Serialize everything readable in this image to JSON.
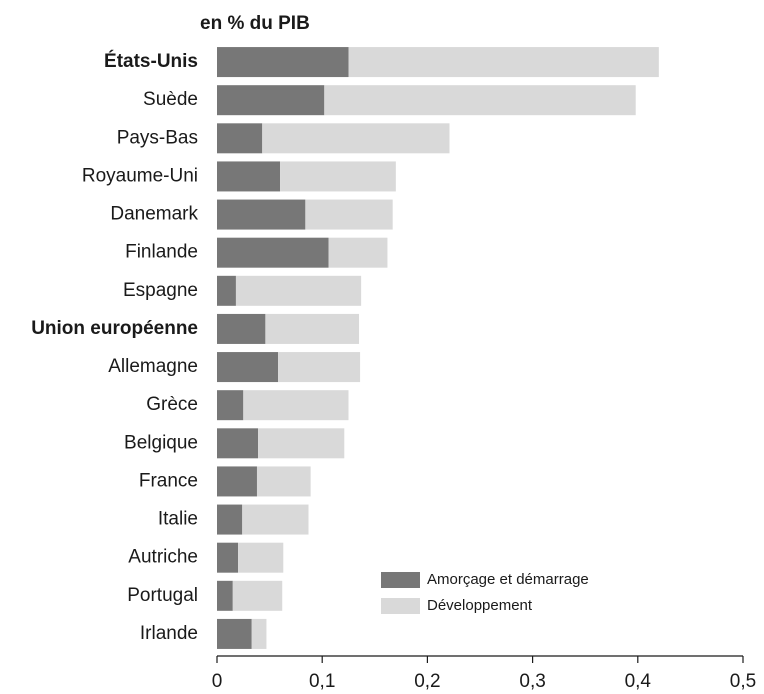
{
  "chart_data": {
    "type": "stacked_barh",
    "title": "en % du PIB",
    "categories": [
      "États-Unis",
      "Suède",
      "Pays-Bas",
      "Royaume-Uni",
      "Danemark",
      "Finlande",
      "Espagne",
      "Union européenne",
      "Allemagne",
      "Grèce",
      "Belgique",
      "France",
      "Italie",
      "Autriche",
      "Portugal",
      "Irlande"
    ],
    "series": [
      {
        "name": "Amorçage et démarrage",
        "color": "#777777",
        "values": [
          0.125,
          0.102,
          0.043,
          0.06,
          0.084,
          0.106,
          0.018,
          0.046,
          0.058,
          0.025,
          0.039,
          0.038,
          0.024,
          0.02,
          0.015,
          0.033
        ]
      },
      {
        "name": "Développement",
        "color": "#d9d9d9",
        "values": [
          0.295,
          0.296,
          0.178,
          0.11,
          0.083,
          0.056,
          0.119,
          0.089,
          0.078,
          0.1,
          0.082,
          0.051,
          0.063,
          0.043,
          0.047,
          0.014
        ]
      }
    ],
    "xlim": [
      0,
      0.5
    ],
    "xticks": [
      0,
      {
        "value": 0.1,
        "label": "0,1"
      },
      {
        "value": 0.2,
        "label": "0,2"
      },
      {
        "value": 0.3,
        "label": "0,3"
      },
      {
        "value": 0.4,
        "label": "0,4"
      },
      {
        "value": 0.5,
        "label": "0,5"
      }
    ]
  }
}
